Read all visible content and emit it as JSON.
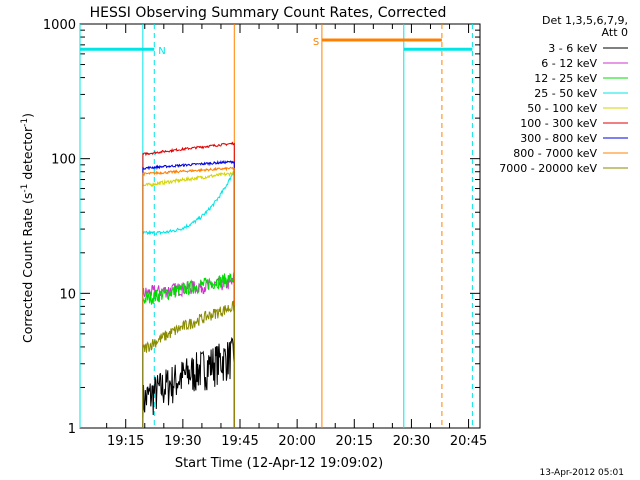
{
  "chart_data": {
    "type": "line",
    "title": "HESSI Observing Summary Count Rates, Corrected",
    "xlabel": "Start Time (12-Apr-12 19:09:02)",
    "ylabel_main": "Corrected Count Rate (s",
    "ylabel_sup1": "-1",
    "ylabel_mid": " detector",
    "ylabel_sup2": "-1",
    "ylabel_end": ")",
    "yscale": "log",
    "ylim": [
      1,
      1000
    ],
    "xlim_minutes": [
      -6,
      99
    ],
    "x_ticks": [
      {
        "label": "19:15",
        "t": 6
      },
      {
        "label": "19:30",
        "t": 21
      },
      {
        "label": "19:45",
        "t": 36
      },
      {
        "label": "20:00",
        "t": 51
      },
      {
        "label": "20:15",
        "t": 66
      },
      {
        "label": "20:30",
        "t": 81
      },
      {
        "label": "20:45",
        "t": 96
      }
    ],
    "y_ticks": [
      {
        "label": "1",
        "v": 1
      },
      {
        "label": "10",
        "v": 10
      },
      {
        "label": "100",
        "v": 100
      },
      {
        "label": "1000",
        "v": 1000
      }
    ],
    "legend_header": [
      "Det 1,3,5,6,7,9,",
      "Att 0"
    ],
    "legend_position": "right",
    "series": [
      {
        "name": "3 - 6 keV",
        "color": "#000000",
        "start": 1.6,
        "end": 3.5,
        "noise": 0.35
      },
      {
        "name": "6 - 12 keV",
        "color": "#cc33cc",
        "start": 10,
        "end": 12,
        "noise": 0.12
      },
      {
        "name": "12 - 25 keV",
        "color": "#00dd00",
        "start": 9,
        "end": 13,
        "noise": 0.12
      },
      {
        "name": "25 - 50 keV",
        "color": "#00e5e5",
        "start": 28,
        "end": 82,
        "noise": 0.03
      },
      {
        "name": "50 - 100 keV",
        "color": "#d4d400",
        "start": 63,
        "end": 78,
        "noise": 0.03
      },
      {
        "name": "100 - 300 keV",
        "color": "#dd0000",
        "start": 108,
        "end": 130,
        "noise": 0.02
      },
      {
        "name": "300 - 800 keV",
        "color": "#0000dd",
        "start": 85,
        "end": 95,
        "noise": 0.02
      },
      {
        "name": "800 - 7000 keV",
        "color": "#ff8000",
        "start": 77,
        "end": 85,
        "noise": 0.02
      },
      {
        "name": "7000 - 20000 keV",
        "color": "#8b8b00",
        "start": 3.8,
        "end": 8.0,
        "noise": 0.1
      }
    ],
    "data_time_range_minutes": [
      10.5,
      34.5
    ],
    "annotations": [
      {
        "label": "N",
        "color": "#00e5e5",
        "t_start": -6,
        "t_end": 13.5,
        "level": 650
      },
      {
        "label": "S",
        "color": "#ff8000",
        "t_start": 57.5,
        "t_end": 89,
        "level": 760
      },
      {
        "label": "",
        "color": "#00e5e5",
        "t_start": 79,
        "t_end": 97,
        "level": 650
      }
    ],
    "solid_vlines": [
      {
        "t": -6,
        "color": "#00e5e5"
      },
      {
        "t": 10.5,
        "color": "#00e5e5"
      },
      {
        "t": 34.5,
        "color": "#ff8000"
      },
      {
        "t": 57.5,
        "color": "#ff8000"
      },
      {
        "t": 79,
        "color": "#00e5e5"
      }
    ],
    "dashed_vlines": [
      {
        "t": 13.5,
        "color": "#00e5e5"
      },
      {
        "t": 89,
        "color": "#ff8000"
      },
      {
        "t": 97,
        "color": "#00e5e5"
      }
    ]
  },
  "footer": {
    "timestamp": "13-Apr-2012 05:01"
  }
}
